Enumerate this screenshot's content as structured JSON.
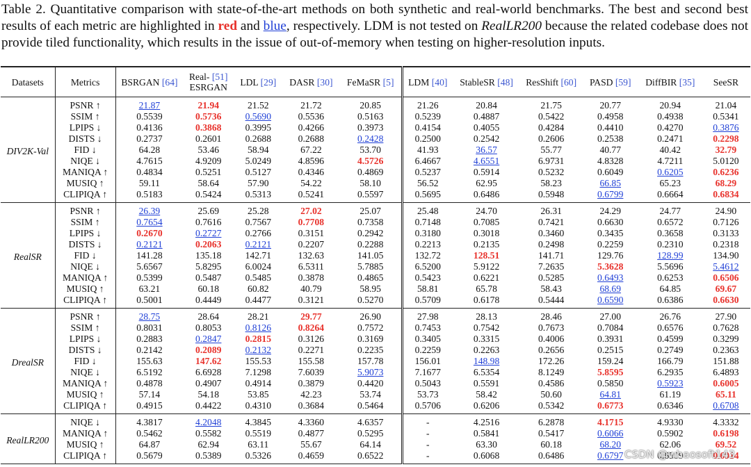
{
  "caption": {
    "part1": "Table 2. Quantitative comparison with state-of-the-art methods on both synthetic and real-world benchmarks. The best and second best results of each metric are highlighted in ",
    "red": "red",
    "and": " and ",
    "blue": "blue",
    "part2": ", respectively. LDM is not tested on ",
    "italic": "RealLR200",
    "part3": " because the related codebase does not provide tiled functionality, which results in the issue of out-of-memory when testing on higher-resolution inputs."
  },
  "table": {
    "headers": {
      "datasets": "Datasets",
      "metrics": "Metrics",
      "methods": [
        {
          "name": "BSRGAN",
          "ref": "[64]"
        },
        {
          "name": "Real-",
          "ref": "[51]",
          "name2": "ESRGAN"
        },
        {
          "name": "LDL",
          "ref": "[29]"
        },
        {
          "name": "DASR",
          "ref": "[30]"
        },
        {
          "name": "FeMaSR",
          "ref": "[5]"
        },
        {
          "name": "LDM",
          "ref": "[40]"
        },
        {
          "name": "StableSR",
          "ref": "[48]"
        },
        {
          "name": "ResShift",
          "ref": "[60]"
        },
        {
          "name": "PASD",
          "ref": "[59]"
        },
        {
          "name": "DiffBIR",
          "ref": "[35]"
        },
        {
          "name": "SeeSR"
        }
      ]
    },
    "groups": [
      {
        "dataset": "DIV2K-Val",
        "rows": [
          {
            "metric": "PSNR ↑",
            "values": [
              "21.87",
              "21.94",
              "21.52",
              "21.72",
              "20.85",
              "21.26",
              "20.84",
              "21.75",
              "20.77",
              "20.94",
              "21.04"
            ],
            "best": [
              1
            ],
            "second": [
              0
            ]
          },
          {
            "metric": "SSIM ↑",
            "values": [
              "0.5539",
              "0.5736",
              "0.5690",
              "0.5536",
              "0.5163",
              "0.5239",
              "0.4887",
              "0.5422",
              "0.4958",
              "0.4938",
              "0.5341"
            ],
            "best": [
              1
            ],
            "second": [
              2
            ]
          },
          {
            "metric": "LPIPS ↓",
            "values": [
              "0.4136",
              "0.3868",
              "0.3995",
              "0.4266",
              "0.3973",
              "0.4154",
              "0.4055",
              "0.4284",
              "0.4410",
              "0.4270",
              "0.3876"
            ],
            "best": [
              1
            ],
            "second": [
              10
            ]
          },
          {
            "metric": "DISTS ↓",
            "values": [
              "0.2737",
              "0.2601",
              "0.2688",
              "0.2688",
              "0.2428",
              "0.2500",
              "0.2542",
              "0.2606",
              "0.2538",
              "0.2471",
              "0.2298"
            ],
            "best": [
              10
            ],
            "second": [
              4
            ]
          },
          {
            "metric": "FID ↓",
            "values": [
              "64.28",
              "53.46",
              "58.94",
              "67.22",
              "53.70",
              "41.93",
              "36.57",
              "55.77",
              "40.77",
              "40.42",
              "32.79"
            ],
            "best": [
              10
            ],
            "second": [
              6
            ]
          },
          {
            "metric": "NIQE ↓",
            "values": [
              "4.7615",
              "4.9209",
              "5.0249",
              "4.8596",
              "4.5726",
              "6.4667",
              "4.6551",
              "6.9731",
              "4.8328",
              "4.7211",
              "5.0120"
            ],
            "best": [
              4
            ],
            "second": [
              6
            ]
          },
          {
            "metric": "MANIQA ↑",
            "values": [
              "0.4834",
              "0.5251",
              "0.5127",
              "0.4346",
              "0.4869",
              "0.5237",
              "0.5914",
              "0.5232",
              "0.6049",
              "0.6205",
              "0.6236"
            ],
            "best": [
              10
            ],
            "second": [
              9
            ]
          },
          {
            "metric": "MUSIQ ↑",
            "values": [
              "59.11",
              "58.64",
              "57.90",
              "54.22",
              "58.10",
              "56.52",
              "62.95",
              "58.23",
              "66.85",
              "65.23",
              "68.29"
            ],
            "best": [
              10
            ],
            "second": [
              8
            ]
          },
          {
            "metric": "CLIPIQA ↑",
            "values": [
              "0.5183",
              "0.5424",
              "0.5313",
              "0.5241",
              "0.5597",
              "0.5695",
              "0.6486",
              "0.5948",
              "0.6799",
              "0.6664",
              "0.6834"
            ],
            "best": [
              10
            ],
            "second": [
              8
            ]
          }
        ]
      },
      {
        "dataset": "RealSR",
        "rows": [
          {
            "metric": "PSNR ↑",
            "values": [
              "26.39",
              "25.69",
              "25.28",
              "27.02",
              "25.07",
              "25.48",
              "24.70",
              "26.31",
              "24.29",
              "24.77",
              "24.90"
            ],
            "best": [
              3
            ],
            "second": [
              0
            ]
          },
          {
            "metric": "SSIM ↑",
            "values": [
              "0.7654",
              "0.7616",
              "0.7567",
              "0.7708",
              "0.7358",
              "0.7148",
              "0.7085",
              "0.7421",
              "0.6630",
              "0.6572",
              "0.7126"
            ],
            "best": [
              3
            ],
            "second": [
              0
            ]
          },
          {
            "metric": "LPIPS ↓",
            "values": [
              "0.2670",
              "0.2727",
              "0.2766",
              "0.3151",
              "0.2942",
              "0.3180",
              "0.3018",
              "0.3460",
              "0.3435",
              "0.3658",
              "0.3133"
            ],
            "best": [
              0
            ],
            "second": [
              1
            ]
          },
          {
            "metric": "DISTS ↓",
            "values": [
              "0.2121",
              "0.2063",
              "0.2121",
              "0.2207",
              "0.2288",
              "0.2213",
              "0.2135",
              "0.2498",
              "0.2259",
              "0.2310",
              "0.2318"
            ],
            "best": [
              1
            ],
            "second": [
              0,
              2
            ]
          },
          {
            "metric": "FID ↓",
            "values": [
              "141.28",
              "135.18",
              "142.71",
              "132.63",
              "141.05",
              "132.72",
              "128.51",
              "141.71",
              "129.76",
              "128.99",
              "134.90"
            ],
            "best": [
              6
            ],
            "second": [
              9
            ]
          },
          {
            "metric": "NIQE ↓",
            "values": [
              "5.6567",
              "5.8295",
              "6.0024",
              "6.5311",
              "5.7885",
              "6.5200",
              "5.9122",
              "7.2635",
              "5.3628",
              "5.5696",
              "5.4612"
            ],
            "best": [
              8
            ],
            "second": [
              10
            ]
          },
          {
            "metric": "MANIQA ↑",
            "values": [
              "0.5399",
              "0.5487",
              "0.5485",
              "0.3878",
              "0.4865",
              "0.5423",
              "0.6221",
              "0.5285",
              "0.6493",
              "0.6253",
              "0.6506"
            ],
            "best": [
              10
            ],
            "second": [
              8
            ]
          },
          {
            "metric": "MUSIQ ↑",
            "values": [
              "63.21",
              "60.18",
              "60.82",
              "40.79",
              "58.95",
              "58.81",
              "65.78",
              "58.43",
              "68.69",
              "64.85",
              "69.67"
            ],
            "best": [
              10
            ],
            "second": [
              8
            ]
          },
          {
            "metric": "CLIPIQA ↑",
            "values": [
              "0.5001",
              "0.4449",
              "0.4477",
              "0.3121",
              "0.5270",
              "0.5709",
              "0.6178",
              "0.5444",
              "0.6590",
              "0.6386",
              "0.6630"
            ],
            "best": [
              10
            ],
            "second": [
              8
            ]
          }
        ]
      },
      {
        "dataset": "DrealSR",
        "rows": [
          {
            "metric": "PSNR ↑",
            "values": [
              "28.75",
              "28.64",
              "28.21",
              "29.77",
              "26.90",
              "27.98",
              "28.13",
              "28.46",
              "27.00",
              "26.76",
              "27.90"
            ],
            "best": [
              3
            ],
            "second": [
              0
            ]
          },
          {
            "metric": "SSIM ↑",
            "values": [
              "0.8031",
              "0.8053",
              "0.8126",
              "0.8264",
              "0.7572",
              "0.7453",
              "0.7542",
              "0.7673",
              "0.7084",
              "0.6576",
              "0.7628"
            ],
            "best": [
              3
            ],
            "second": [
              2
            ]
          },
          {
            "metric": "LPIPS ↓",
            "values": [
              "0.2883",
              "0.2847",
              "0.2815",
              "0.3126",
              "0.3169",
              "0.3405",
              "0.3315",
              "0.4006",
              "0.3931",
              "0.4599",
              "0.3299"
            ],
            "best": [
              2
            ],
            "second": [
              1
            ]
          },
          {
            "metric": "DISTS ↓",
            "values": [
              "0.2142",
              "0.2089",
              "0.2132",
              "0.2271",
              "0.2235",
              "0.2259",
              "0.2263",
              "0.2656",
              "0.2515",
              "0.2749",
              "0.2363"
            ],
            "best": [
              1
            ],
            "second": [
              2
            ]
          },
          {
            "metric": "FID ↓",
            "values": [
              "155.63",
              "147.62",
              "155.53",
              "155.58",
              "157.78",
              "156.01",
              "148.98",
              "172.26",
              "159.24",
              "166.79",
              "151.88"
            ],
            "best": [
              1
            ],
            "second": [
              6
            ]
          },
          {
            "metric": "NIQE ↓",
            "values": [
              "6.5192",
              "6.6928",
              "7.1298",
              "7.6039",
              "5.9073",
              "7.1677",
              "6.5354",
              "8.1249",
              "5.8595",
              "6.2935",
              "6.4893"
            ],
            "best": [
              8
            ],
            "second": [
              4
            ]
          },
          {
            "metric": "MANIQA ↑",
            "values": [
              "0.4878",
              "0.4907",
              "0.4914",
              "0.3879",
              "0.4420",
              "0.5043",
              "0.5591",
              "0.4586",
              "0.5850",
              "0.5923",
              "0.6005"
            ],
            "best": [
              10
            ],
            "second": [
              9
            ]
          },
          {
            "metric": "MUSIQ ↑",
            "values": [
              "57.14",
              "54.18",
              "53.85",
              "42.23",
              "53.74",
              "53.73",
              "58.42",
              "50.60",
              "64.81",
              "61.19",
              "65.11"
            ],
            "best": [
              10
            ],
            "second": [
              8
            ]
          },
          {
            "metric": "CLIPIQA ↑",
            "values": [
              "0.4915",
              "0.4422",
              "0.4310",
              "0.3684",
              "0.5464",
              "0.5706",
              "0.6206",
              "0.5342",
              "0.6773",
              "0.6346",
              "0.6708"
            ],
            "best": [
              8
            ],
            "second": [
              10
            ]
          }
        ]
      },
      {
        "dataset": "RealLR200",
        "rows": [
          {
            "metric": "NIQE ↓",
            "values": [
              "4.3817",
              "4.2048",
              "4.3845",
              "4.3360",
              "4.6357",
              "-",
              "4.2516",
              "6.2878",
              "4.1715",
              "4.9330",
              "4.3332"
            ],
            "best": [
              8
            ],
            "second": [
              1
            ]
          },
          {
            "metric": "MANIQA ↑",
            "values": [
              "0.5462",
              "0.5582",
              "0.5519",
              "0.4877",
              "0.5295",
              "-",
              "0.5841",
              "0.5417",
              "0.6066",
              "0.5902",
              "0.6198"
            ],
            "best": [
              10
            ],
            "second": [
              8
            ]
          },
          {
            "metric": "MUSIQ ↑",
            "values": [
              "64.87",
              "62.94",
              "63.11",
              "55.67",
              "64.14",
              "-",
              "63.30",
              "60.18",
              "68.20",
              "62.06",
              "69.52"
            ],
            "best": [
              10
            ],
            "second": [
              8
            ]
          },
          {
            "metric": "CLIPIQA ↑",
            "values": [
              "0.5679",
              "0.5389",
              "0.5326",
              "0.4659",
              "0.6522",
              "-",
              "0.6068",
              "0.6486",
              "0.6797",
              "0.6509",
              "0.6914"
            ],
            "best": [
              10
            ],
            "second": [
              8
            ]
          }
        ]
      }
    ]
  },
  "watermark": "CSDN @whaosoft143"
}
